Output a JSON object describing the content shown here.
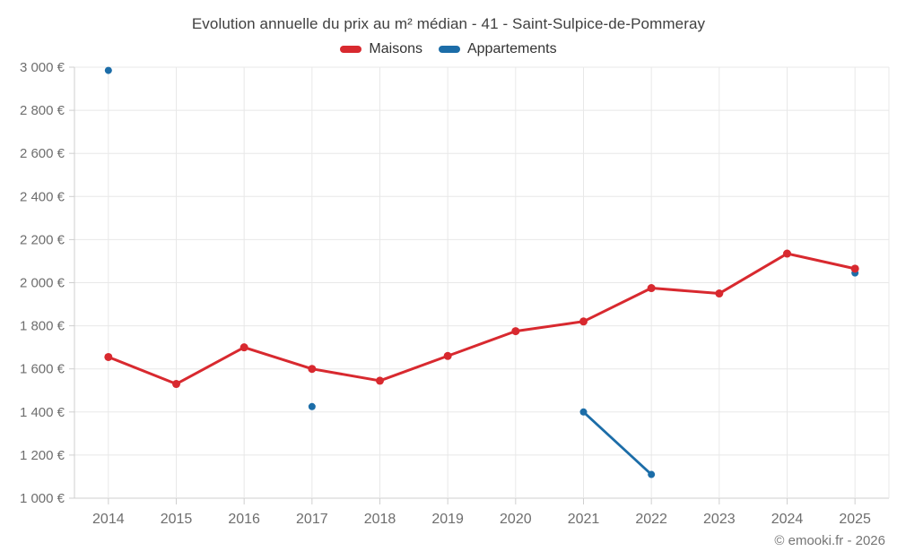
{
  "chart_data": {
    "type": "line",
    "title": "Evolution annuelle du prix au m² médian - 41 - Saint-Sulpice-de-Pommeray",
    "categories": [
      "2014",
      "2015",
      "2016",
      "2017",
      "2018",
      "2019",
      "2020",
      "2021",
      "2022",
      "2023",
      "2024",
      "2025"
    ],
    "series": [
      {
        "name": "Maisons",
        "color": "#d8292f",
        "values": [
          1655,
          1530,
          1700,
          1600,
          1545,
          1660,
          1775,
          1820,
          1975,
          1950,
          2135,
          2065
        ]
      },
      {
        "name": "Appartements",
        "color": "#1c6da8",
        "values": [
          2985,
          null,
          null,
          1425,
          null,
          null,
          null,
          1400,
          1110,
          null,
          null,
          2045
        ]
      }
    ],
    "xlabel": "",
    "ylabel": "",
    "ylim": [
      1000,
      3000
    ],
    "ytick_step": 200,
    "ytick_labels": [
      "1 000 €",
      "1 200 €",
      "1 400 €",
      "1 600 €",
      "1 800 €",
      "2 000 €",
      "2 200 €",
      "2 400 €",
      "2 600 €",
      "2 800 €",
      "3 000 €"
    ],
    "grid": true,
    "legend_position": "top"
  },
  "footer": {
    "copyright": "© emooki.fr - 2026"
  },
  "colors": {
    "grid_line": "#e8e8e8",
    "axis_line": "#cfcfcf",
    "tick_label": "#6e6e6e",
    "title_text": "#404040",
    "legend_text": "#333333",
    "background": "#ffffff"
  }
}
